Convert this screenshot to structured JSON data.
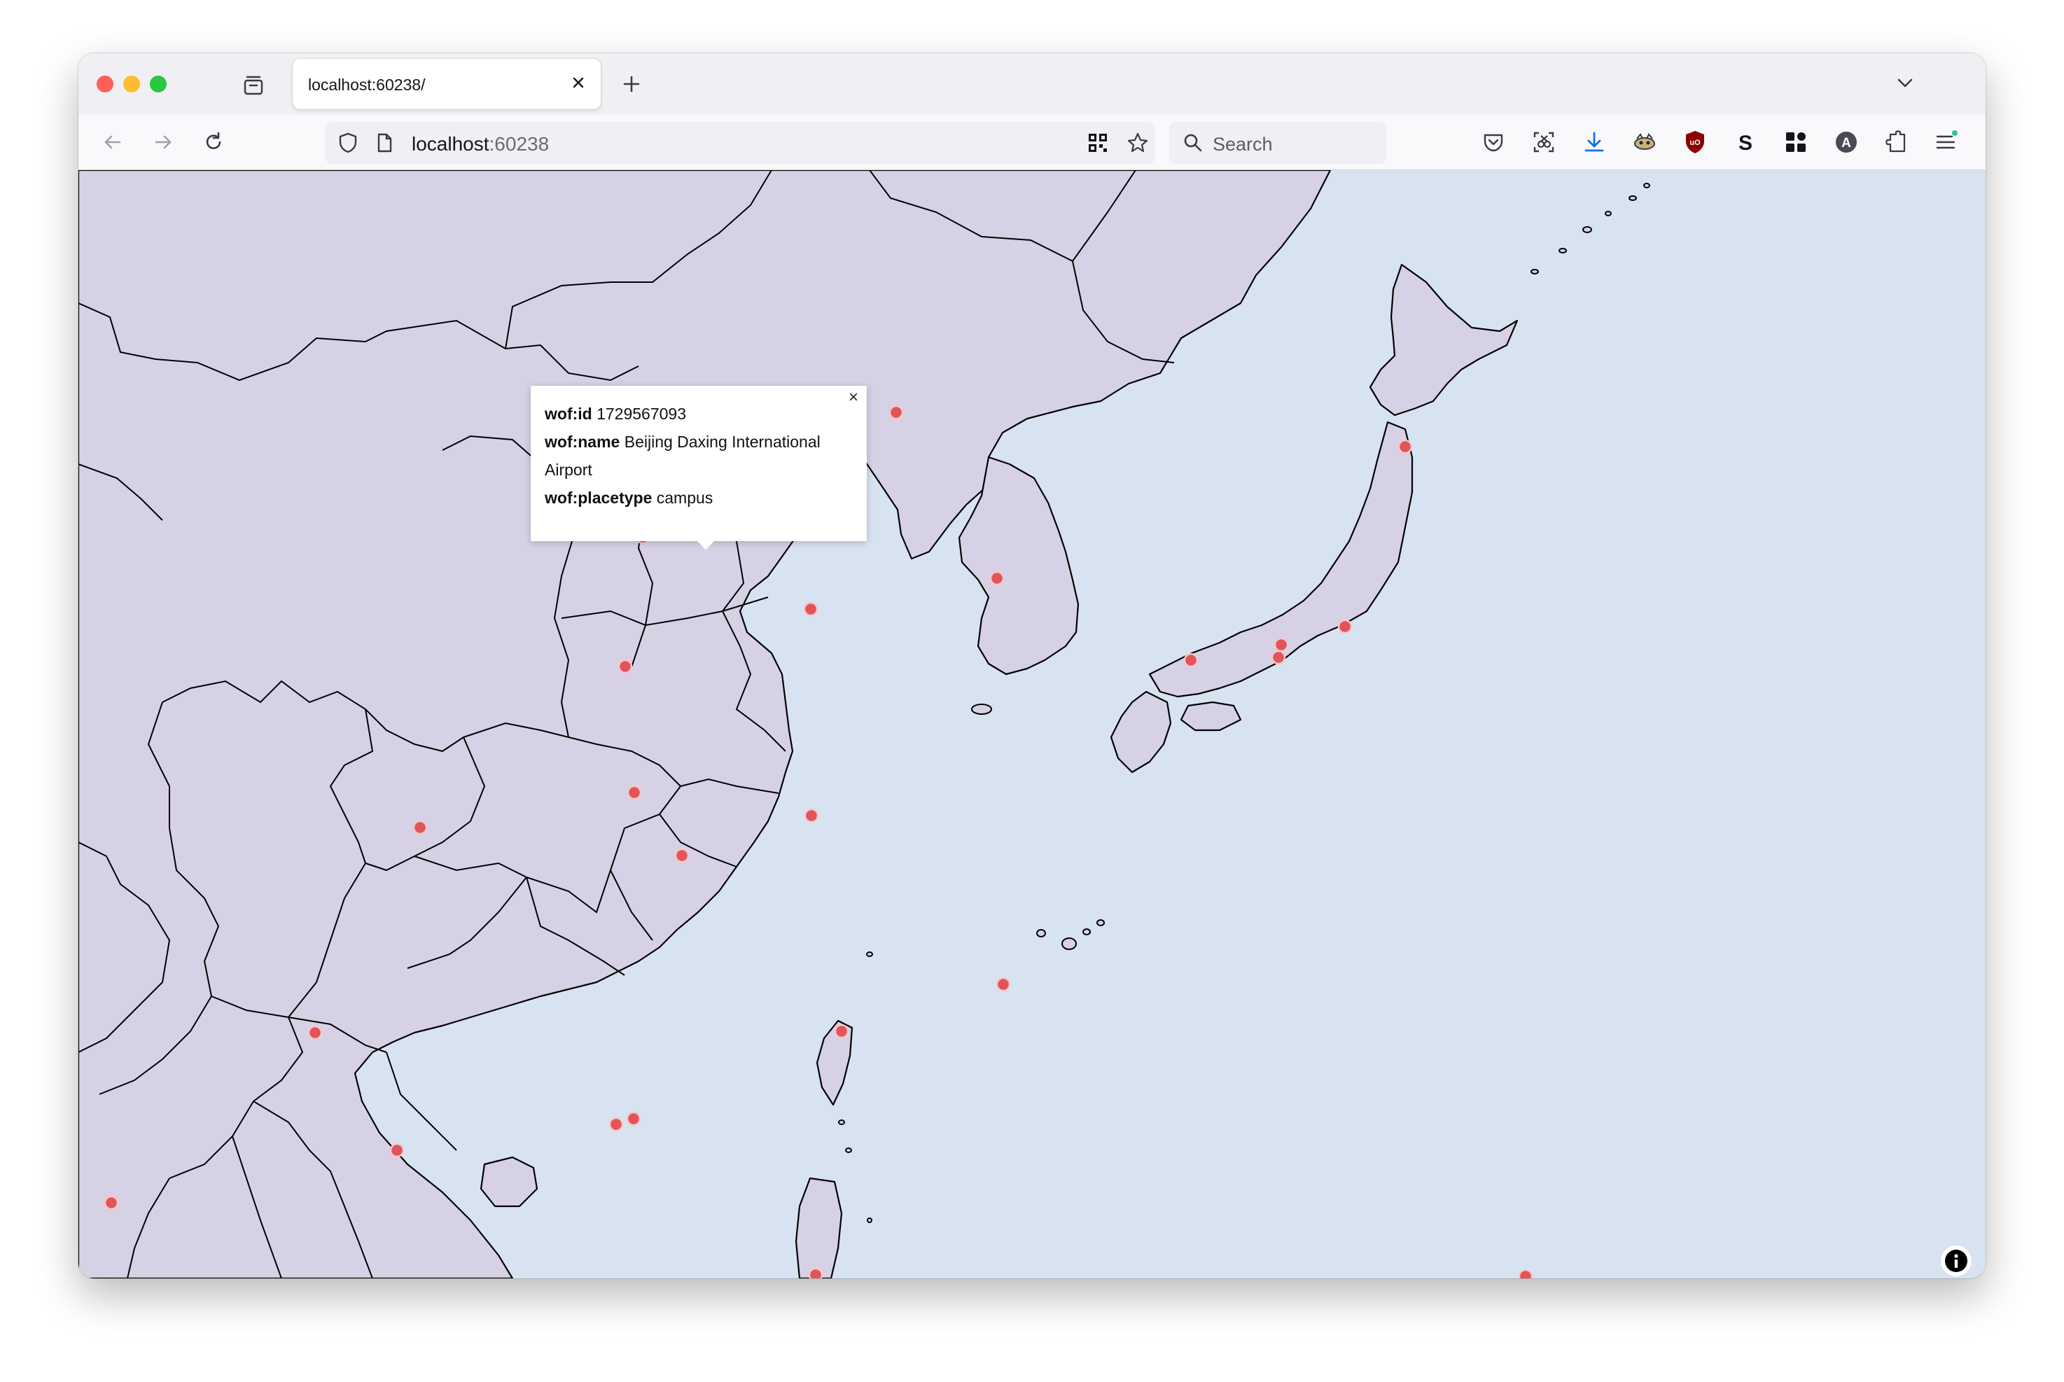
{
  "browser": {
    "tab": {
      "title": "localhost:60238/",
      "close_icon": "close-icon"
    },
    "new_tab_icon": "plus-icon",
    "url": {
      "host": "localhost",
      "port": ":60238"
    },
    "search": {
      "placeholder": "Search"
    },
    "toolbar_icons": [
      "pocket-icon",
      "screenshot-icon",
      "download-icon",
      "extension-fox-icon",
      "ublock-icon",
      "s-extension-icon",
      "grid-extension-icon",
      "account-icon",
      "extensions-icon",
      "menu-icon"
    ],
    "colors": {
      "download": "#0b73e0",
      "ublock": "#8b0000"
    }
  },
  "map": {
    "colors": {
      "water": "#d8e3f1",
      "land": "#d7d1e5",
      "border": "#000000",
      "marker": "#e0555a",
      "marker_stroke": "#f7c7c7"
    },
    "popup": {
      "id_label": "wof:id",
      "id_value": "1729567093",
      "name_label": "wof:name",
      "name_value": "Beijing Daxing International",
      "name_value_cont": "Airport",
      "placetype_label": "wof:placetype",
      "placetype_value": "campus",
      "close": "×"
    },
    "info_icon": "info-icon"
  }
}
